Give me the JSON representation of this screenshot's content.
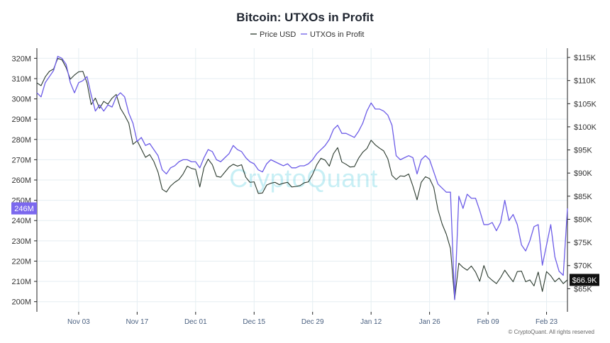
{
  "chart_data": {
    "type": "line",
    "title": "Bitcoin: UTXOs in Profit",
    "legend": [
      "Price USD",
      "UTXOs in Profit"
    ],
    "legend_position": "top-center",
    "watermark": "CryptoQuant",
    "copyright": "© CryptoQuant. All rights reserved",
    "colors": {
      "price": "#2b3a2e",
      "utxo": "#6c5ce7",
      "badge_left": "#7b68ee",
      "badge_right": "#111111"
    },
    "x_ticks": [
      "Nov 03",
      "Nov 17",
      "Dec 01",
      "Dec 15",
      "Dec 29",
      "Jan 12",
      "Jan 26",
      "Feb 09",
      "Feb 23"
    ],
    "x_tick_index": [
      10,
      24,
      38,
      52,
      66,
      80,
      94,
      108,
      122
    ],
    "y_left": {
      "label": "UTXOs in Profit",
      "unit": "M",
      "range": [
        195,
        325
      ],
      "ticks": [
        "200M",
        "210M",
        "220M",
        "230M",
        "240M",
        "250M",
        "260M",
        "270M",
        "280M",
        "290M",
        "300M",
        "310M",
        "320M"
      ]
    },
    "y_right": {
      "label": "Price USD",
      "range": [
        60000,
        117000
      ],
      "ticks": [
        "$65K",
        "$70K",
        "$75K",
        "$80K",
        "$85K",
        "$90K",
        "$95K",
        "$100K",
        "$105K",
        "$110K",
        "$115K"
      ]
    },
    "last_value_labels": {
      "utxo": "246M",
      "price": "$66.9K"
    },
    "grid": true,
    "series": [
      {
        "name": "UTXOs in Profit",
        "axis": "left",
        "unit": "M",
        "values": [
          303,
          301,
          308,
          311,
          314,
          321,
          320,
          317,
          308,
          303,
          308,
          309,
          311,
          302,
          294,
          297,
          294,
          297,
          296,
          301,
          303,
          301,
          293,
          288,
          279,
          281,
          277,
          278,
          275,
          272,
          265,
          263,
          266,
          267,
          269,
          270,
          270,
          269,
          269,
          266,
          271,
          275,
          274,
          270,
          269,
          271,
          273,
          277,
          275,
          274,
          271,
          269,
          268,
          265,
          264,
          268,
          270,
          269,
          268,
          267,
          268,
          266,
          266,
          267,
          267,
          268,
          270,
          273,
          275,
          277,
          280,
          285,
          287,
          283,
          283,
          282,
          281,
          284,
          288,
          294,
          298,
          295,
          295,
          294,
          292,
          287,
          272,
          270,
          271,
          272,
          271,
          263,
          270,
          272,
          270,
          264,
          258,
          256,
          254,
          254,
          201,
          252,
          246,
          253,
          251,
          251,
          245,
          238,
          238,
          239,
          235,
          239,
          250,
          240,
          243,
          238,
          228,
          225,
          230,
          237,
          238,
          218,
          228,
          238,
          222,
          215,
          213,
          246
        ]
      },
      {
        "name": "Price USD",
        "axis": "right",
        "values": [
          109500,
          108900,
          110800,
          112000,
          112500,
          114800,
          114500,
          112800,
          110300,
          111200,
          111900,
          112000,
          109500,
          104800,
          106200,
          104000,
          105500,
          104900,
          106200,
          107000,
          104000,
          102500,
          100800,
          96200,
          97000,
          95200,
          93400,
          94000,
          92500,
          90200,
          86500,
          85900,
          87200,
          88000,
          88600,
          89800,
          91500,
          91000,
          90800,
          87000,
          91200,
          93000,
          91800,
          89300,
          89100,
          90200,
          91300,
          91900,
          91500,
          91800,
          89100,
          88000,
          88100,
          85600,
          85700,
          87400,
          87800,
          88000,
          87500,
          87800,
          88000,
          87000,
          87100,
          87300,
          87900,
          88100,
          89700,
          91800,
          93200,
          92800,
          91500,
          94200,
          95500,
          92400,
          91900,
          91300,
          91400,
          93200,
          94500,
          95300,
          97100,
          96100,
          95400,
          94800,
          93100,
          89500,
          88600,
          89400,
          89300,
          89800,
          87200,
          84200,
          88000,
          89200,
          88800,
          86900,
          82100,
          79000,
          76800,
          73700,
          62700,
          70500,
          69600,
          69000,
          69900,
          68600,
          66600,
          70000,
          67600,
          66800,
          66100,
          67400,
          69000,
          67700,
          66500,
          68700,
          68800,
          66500,
          66900,
          65600,
          68600,
          64400,
          68700,
          67800,
          66500,
          67300,
          66100,
          66900
        ]
      }
    ]
  }
}
